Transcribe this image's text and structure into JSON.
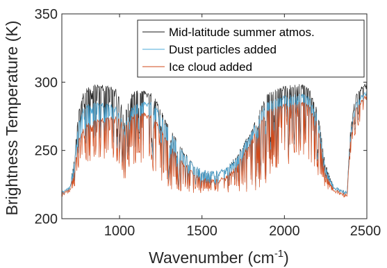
{
  "chart_data": {
    "type": "line",
    "title": "",
    "xlabel": "Wavenumber (cm",
    "xlabel_superscript": "-1",
    "xlabel_suffix": ")",
    "ylabel": "Brightness Temperature (K)",
    "xlim": [
      650,
      2500
    ],
    "ylim": [
      200,
      350
    ],
    "xticks": [
      1000,
      1500,
      2000,
      2500
    ],
    "yticks": [
      200,
      250,
      300,
      350
    ],
    "grid": false,
    "legend_position": "top-right",
    "series": [
      {
        "name": "Mid-latitude summer atmos.",
        "color": "#1a1a1a",
        "x": [
          650,
          670,
          700,
          730,
          750,
          780,
          800,
          850,
          900,
          950,
          980,
          1000,
          1030,
          1050,
          1070,
          1100,
          1150,
          1200,
          1250,
          1300,
          1350,
          1400,
          1450,
          1500,
          1550,
          1600,
          1650,
          1700,
          1750,
          1800,
          1850,
          1900,
          1950,
          2000,
          2050,
          2100,
          2150,
          2200,
          2250,
          2300,
          2350,
          2380,
          2400,
          2430,
          2460,
          2500
        ],
        "y": [
          220,
          221,
          224,
          250,
          278,
          292,
          296,
          298,
          298,
          297,
          295,
          290,
          275,
          285,
          292,
          294,
          294,
          292,
          280,
          268,
          258,
          248,
          240,
          236,
          235,
          235,
          238,
          245,
          255,
          265,
          280,
          292,
          296,
          297,
          298,
          299,
          296,
          280,
          240,
          224,
          221,
          220,
          265,
          290,
          296,
          300
        ],
        "spike_min": [
          220,
          219,
          222,
          230,
          245,
          250,
          255,
          260,
          262,
          260,
          255,
          248,
          232,
          240,
          255,
          252,
          248,
          240,
          232,
          226,
          222,
          220,
          220,
          221,
          222,
          222,
          222,
          221,
          220,
          220,
          224,
          232,
          240,
          244,
          248,
          250,
          246,
          236,
          226,
          222,
          220,
          219,
          250,
          270,
          280,
          285
        ]
      },
      {
        "name": "Dust particles added",
        "color": "#4aa8d8",
        "x": [
          650,
          670,
          700,
          730,
          750,
          780,
          800,
          850,
          900,
          950,
          980,
          1000,
          1030,
          1050,
          1070,
          1100,
          1150,
          1200,
          1250,
          1300,
          1350,
          1400,
          1450,
          1500,
          1550,
          1600,
          1650,
          1700,
          1750,
          1800,
          1850,
          1900,
          1950,
          2000,
          2050,
          2100,
          2150,
          2200,
          2250,
          2300,
          2350,
          2380,
          2400,
          2430,
          2460,
          2500
        ],
        "y": [
          220,
          221,
          224,
          248,
          270,
          281,
          284,
          285,
          285,
          284,
          282,
          278,
          268,
          275,
          282,
          284,
          286,
          286,
          276,
          266,
          256,
          247,
          240,
          236,
          235,
          235,
          238,
          244,
          254,
          264,
          277,
          286,
          289,
          290,
          291,
          292,
          290,
          276,
          238,
          224,
          221,
          220,
          262,
          284,
          290,
          294
        ],
        "spike_min": [
          220,
          219,
          222,
          228,
          242,
          247,
          252,
          256,
          258,
          256,
          252,
          246,
          230,
          238,
          252,
          250,
          246,
          238,
          231,
          225,
          222,
          220,
          220,
          221,
          222,
          222,
          222,
          221,
          220,
          220,
          223,
          231,
          238,
          242,
          246,
          248,
          244,
          234,
          225,
          222,
          220,
          219,
          248,
          266,
          276,
          282
        ]
      },
      {
        "name": "Ice cloud added",
        "color": "#d24a1a",
        "x": [
          650,
          670,
          700,
          730,
          750,
          780,
          800,
          850,
          900,
          950,
          980,
          1000,
          1030,
          1050,
          1070,
          1100,
          1150,
          1200,
          1250,
          1300,
          1350,
          1400,
          1450,
          1500,
          1550,
          1600,
          1650,
          1700,
          1750,
          1800,
          1850,
          1900,
          1950,
          2000,
          2050,
          2100,
          2150,
          2200,
          2250,
          2300,
          2350,
          2380,
          2400,
          2430,
          2460,
          2500
        ],
        "y": [
          219,
          220,
          222,
          240,
          258,
          266,
          270,
          272,
          274,
          275,
          275,
          275,
          266,
          272,
          276,
          277,
          278,
          276,
          266,
          256,
          247,
          240,
          234,
          230,
          229,
          229,
          232,
          238,
          248,
          258,
          270,
          280,
          283,
          284,
          285,
          286,
          284,
          270,
          234,
          222,
          219,
          218,
          258,
          280,
          286,
          292
        ],
        "spike_min": [
          218,
          218,
          220,
          224,
          232,
          236,
          240,
          242,
          244,
          244,
          242,
          238,
          226,
          232,
          240,
          238,
          236,
          230,
          226,
          222,
          220,
          218,
          218,
          218,
          219,
          219,
          219,
          218,
          218,
          218,
          220,
          226,
          232,
          236,
          240,
          242,
          238,
          230,
          222,
          220,
          218,
          217,
          244,
          262,
          272,
          278
        ]
      }
    ]
  }
}
